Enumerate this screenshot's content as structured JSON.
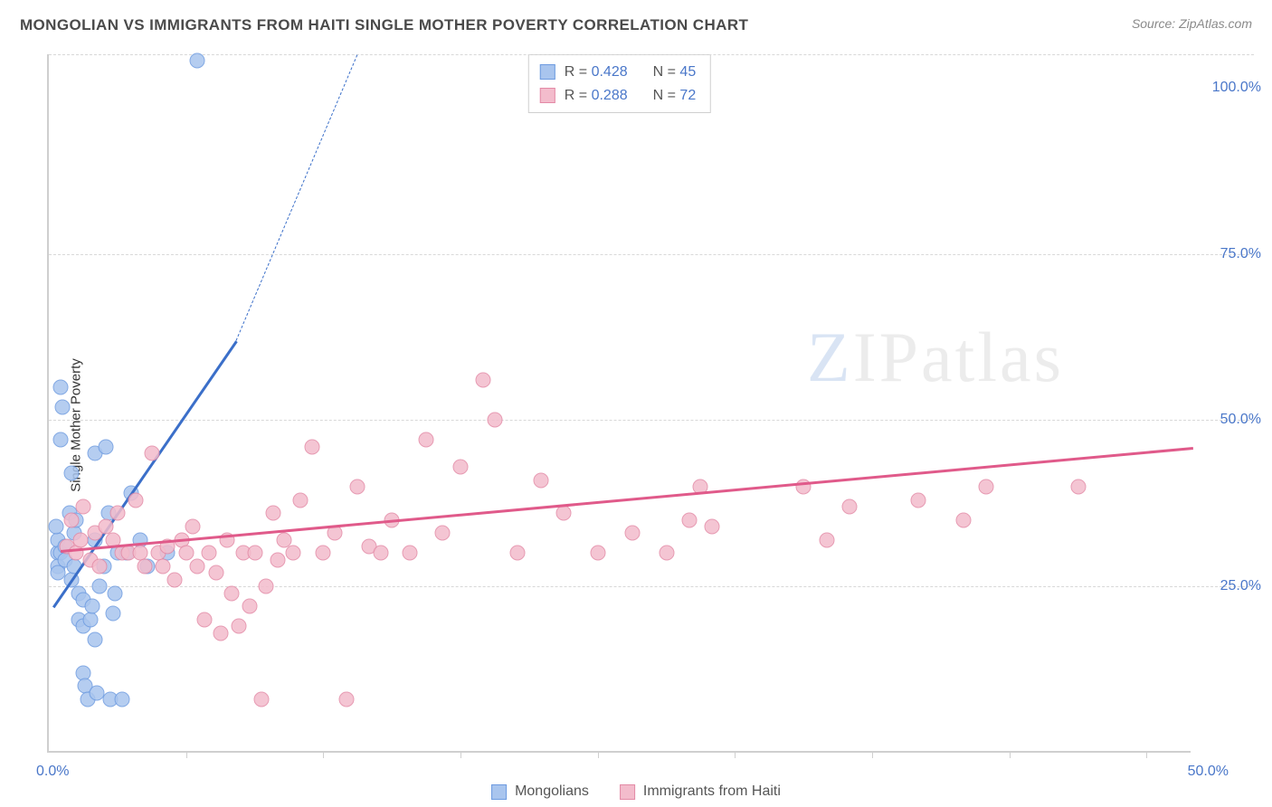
{
  "header": {
    "title": "MONGOLIAN VS IMMIGRANTS FROM HAITI SINGLE MOTHER POVERTY CORRELATION CHART",
    "source_label": "Source: ZipAtlas.com"
  },
  "ylabel": "Single Mother Poverty",
  "watermark": {
    "z": "Z",
    "rest": "IPatlas"
  },
  "chart": {
    "type": "scatter",
    "background_color": "#ffffff",
    "grid_color": "#d8d8d8",
    "axis_color": "#cfcfcf",
    "xlim": [
      0,
      50
    ],
    "ylim": [
      0,
      105
    ],
    "x_ticks": [
      6,
      12,
      18,
      24,
      30,
      36,
      42,
      48
    ],
    "y_gridlines": [
      25,
      50,
      75,
      105
    ],
    "y_tick_labels": [
      {
        "value": 25,
        "label": "25.0%"
      },
      {
        "value": 50,
        "label": "50.0%"
      },
      {
        "value": 75,
        "label": "75.0%"
      },
      {
        "value": 100,
        "label": "100.0%"
      }
    ],
    "x_min_label": "0.0%",
    "x_max_label": "50.0%",
    "marker_radius": 8.5,
    "marker_stroke_width": 1.4,
    "marker_fill_opacity": 0.28,
    "trend_line_width": 2.5,
    "series": [
      {
        "id": "mongolians",
        "label": "Mongolians",
        "color_stroke": "#6d9be0",
        "color_fill": "#a9c5ee",
        "trend_color": "#3b6fc9",
        "R": "0.428",
        "N": "45",
        "trend": {
          "x1": 0.2,
          "y1": 22,
          "x2": 8.2,
          "y2": 62
        },
        "trend_dashed": {
          "x1": 8.2,
          "y1": 62,
          "x2": 13.5,
          "y2": 105
        },
        "points": [
          [
            0.4,
            30
          ],
          [
            0.4,
            32
          ],
          [
            0.4,
            28
          ],
          [
            0.4,
            27
          ],
          [
            0.3,
            34
          ],
          [
            0.5,
            30
          ],
          [
            0.5,
            47
          ],
          [
            0.5,
            55
          ],
          [
            0.6,
            52
          ],
          [
            0.7,
            31
          ],
          [
            0.7,
            29
          ],
          [
            0.9,
            36
          ],
          [
            1.0,
            42
          ],
          [
            1.0,
            26
          ],
          [
            1.1,
            28
          ],
          [
            1.1,
            33
          ],
          [
            1.2,
            35
          ],
          [
            1.3,
            20
          ],
          [
            1.3,
            24
          ],
          [
            1.5,
            19
          ],
          [
            1.5,
            23
          ],
          [
            1.5,
            12
          ],
          [
            1.6,
            10
          ],
          [
            1.7,
            8
          ],
          [
            1.8,
            20
          ],
          [
            1.9,
            22
          ],
          [
            2.0,
            32
          ],
          [
            2.0,
            45
          ],
          [
            2.0,
            17
          ],
          [
            2.1,
            9
          ],
          [
            2.2,
            25
          ],
          [
            2.4,
            28
          ],
          [
            2.5,
            46
          ],
          [
            2.6,
            36
          ],
          [
            2.7,
            8
          ],
          [
            2.8,
            21
          ],
          [
            2.9,
            24
          ],
          [
            3.0,
            30
          ],
          [
            3.2,
            8
          ],
          [
            3.4,
            30
          ],
          [
            3.6,
            39
          ],
          [
            4.0,
            32
          ],
          [
            4.3,
            28
          ],
          [
            5.2,
            30
          ],
          [
            6.5,
            104
          ]
        ]
      },
      {
        "id": "haiti",
        "label": "Immigrants from Haiti",
        "color_stroke": "#e38aa6",
        "color_fill": "#f3bccc",
        "trend_color": "#e05a8a",
        "R": "0.288",
        "N": "72",
        "trend": {
          "x1": 0.5,
          "y1": 30.5,
          "x2": 50,
          "y2": 46
        },
        "points": [
          [
            0.8,
            31
          ],
          [
            1.0,
            35
          ],
          [
            1.2,
            30
          ],
          [
            1.4,
            32
          ],
          [
            1.5,
            37
          ],
          [
            1.8,
            29
          ],
          [
            2.0,
            33
          ],
          [
            2.2,
            28
          ],
          [
            2.5,
            34
          ],
          [
            2.8,
            32
          ],
          [
            3.0,
            36
          ],
          [
            3.2,
            30
          ],
          [
            3.5,
            30
          ],
          [
            3.8,
            38
          ],
          [
            4.0,
            30
          ],
          [
            4.2,
            28
          ],
          [
            4.5,
            45
          ],
          [
            4.8,
            30
          ],
          [
            5.0,
            28
          ],
          [
            5.2,
            31
          ],
          [
            5.5,
            26
          ],
          [
            5.8,
            32
          ],
          [
            6.0,
            30
          ],
          [
            6.3,
            34
          ],
          [
            6.5,
            28
          ],
          [
            6.8,
            20
          ],
          [
            7.0,
            30
          ],
          [
            7.3,
            27
          ],
          [
            7.5,
            18
          ],
          [
            7.8,
            32
          ],
          [
            8.0,
            24
          ],
          [
            8.3,
            19
          ],
          [
            8.5,
            30
          ],
          [
            8.8,
            22
          ],
          [
            9.0,
            30
          ],
          [
            9.3,
            8
          ],
          [
            9.5,
            25
          ],
          [
            9.8,
            36
          ],
          [
            10.0,
            29
          ],
          [
            10.3,
            32
          ],
          [
            10.7,
            30
          ],
          [
            11.0,
            38
          ],
          [
            11.5,
            46
          ],
          [
            12.0,
            30
          ],
          [
            12.5,
            33
          ],
          [
            13.0,
            8
          ],
          [
            13.5,
            40
          ],
          [
            14.0,
            31
          ],
          [
            14.5,
            30
          ],
          [
            15.0,
            35
          ],
          [
            15.8,
            30
          ],
          [
            16.5,
            47
          ],
          [
            17.2,
            33
          ],
          [
            18.0,
            43
          ],
          [
            19.0,
            56
          ],
          [
            19.5,
            50
          ],
          [
            20.5,
            30
          ],
          [
            21.5,
            41
          ],
          [
            22.5,
            36
          ],
          [
            24.0,
            30
          ],
          [
            25.5,
            33
          ],
          [
            27.0,
            30
          ],
          [
            28.0,
            35
          ],
          [
            28.5,
            40
          ],
          [
            29.0,
            34
          ],
          [
            33.0,
            40
          ],
          [
            34.0,
            32
          ],
          [
            35.0,
            37
          ],
          [
            38.0,
            38
          ],
          [
            40.0,
            35
          ],
          [
            41.0,
            40
          ],
          [
            45.0,
            40
          ]
        ]
      }
    ]
  },
  "stats_box": {
    "r_prefix": "R = ",
    "n_prefix": "N = "
  },
  "legend": {
    "series_refs": [
      "mongolians",
      "haiti"
    ]
  }
}
